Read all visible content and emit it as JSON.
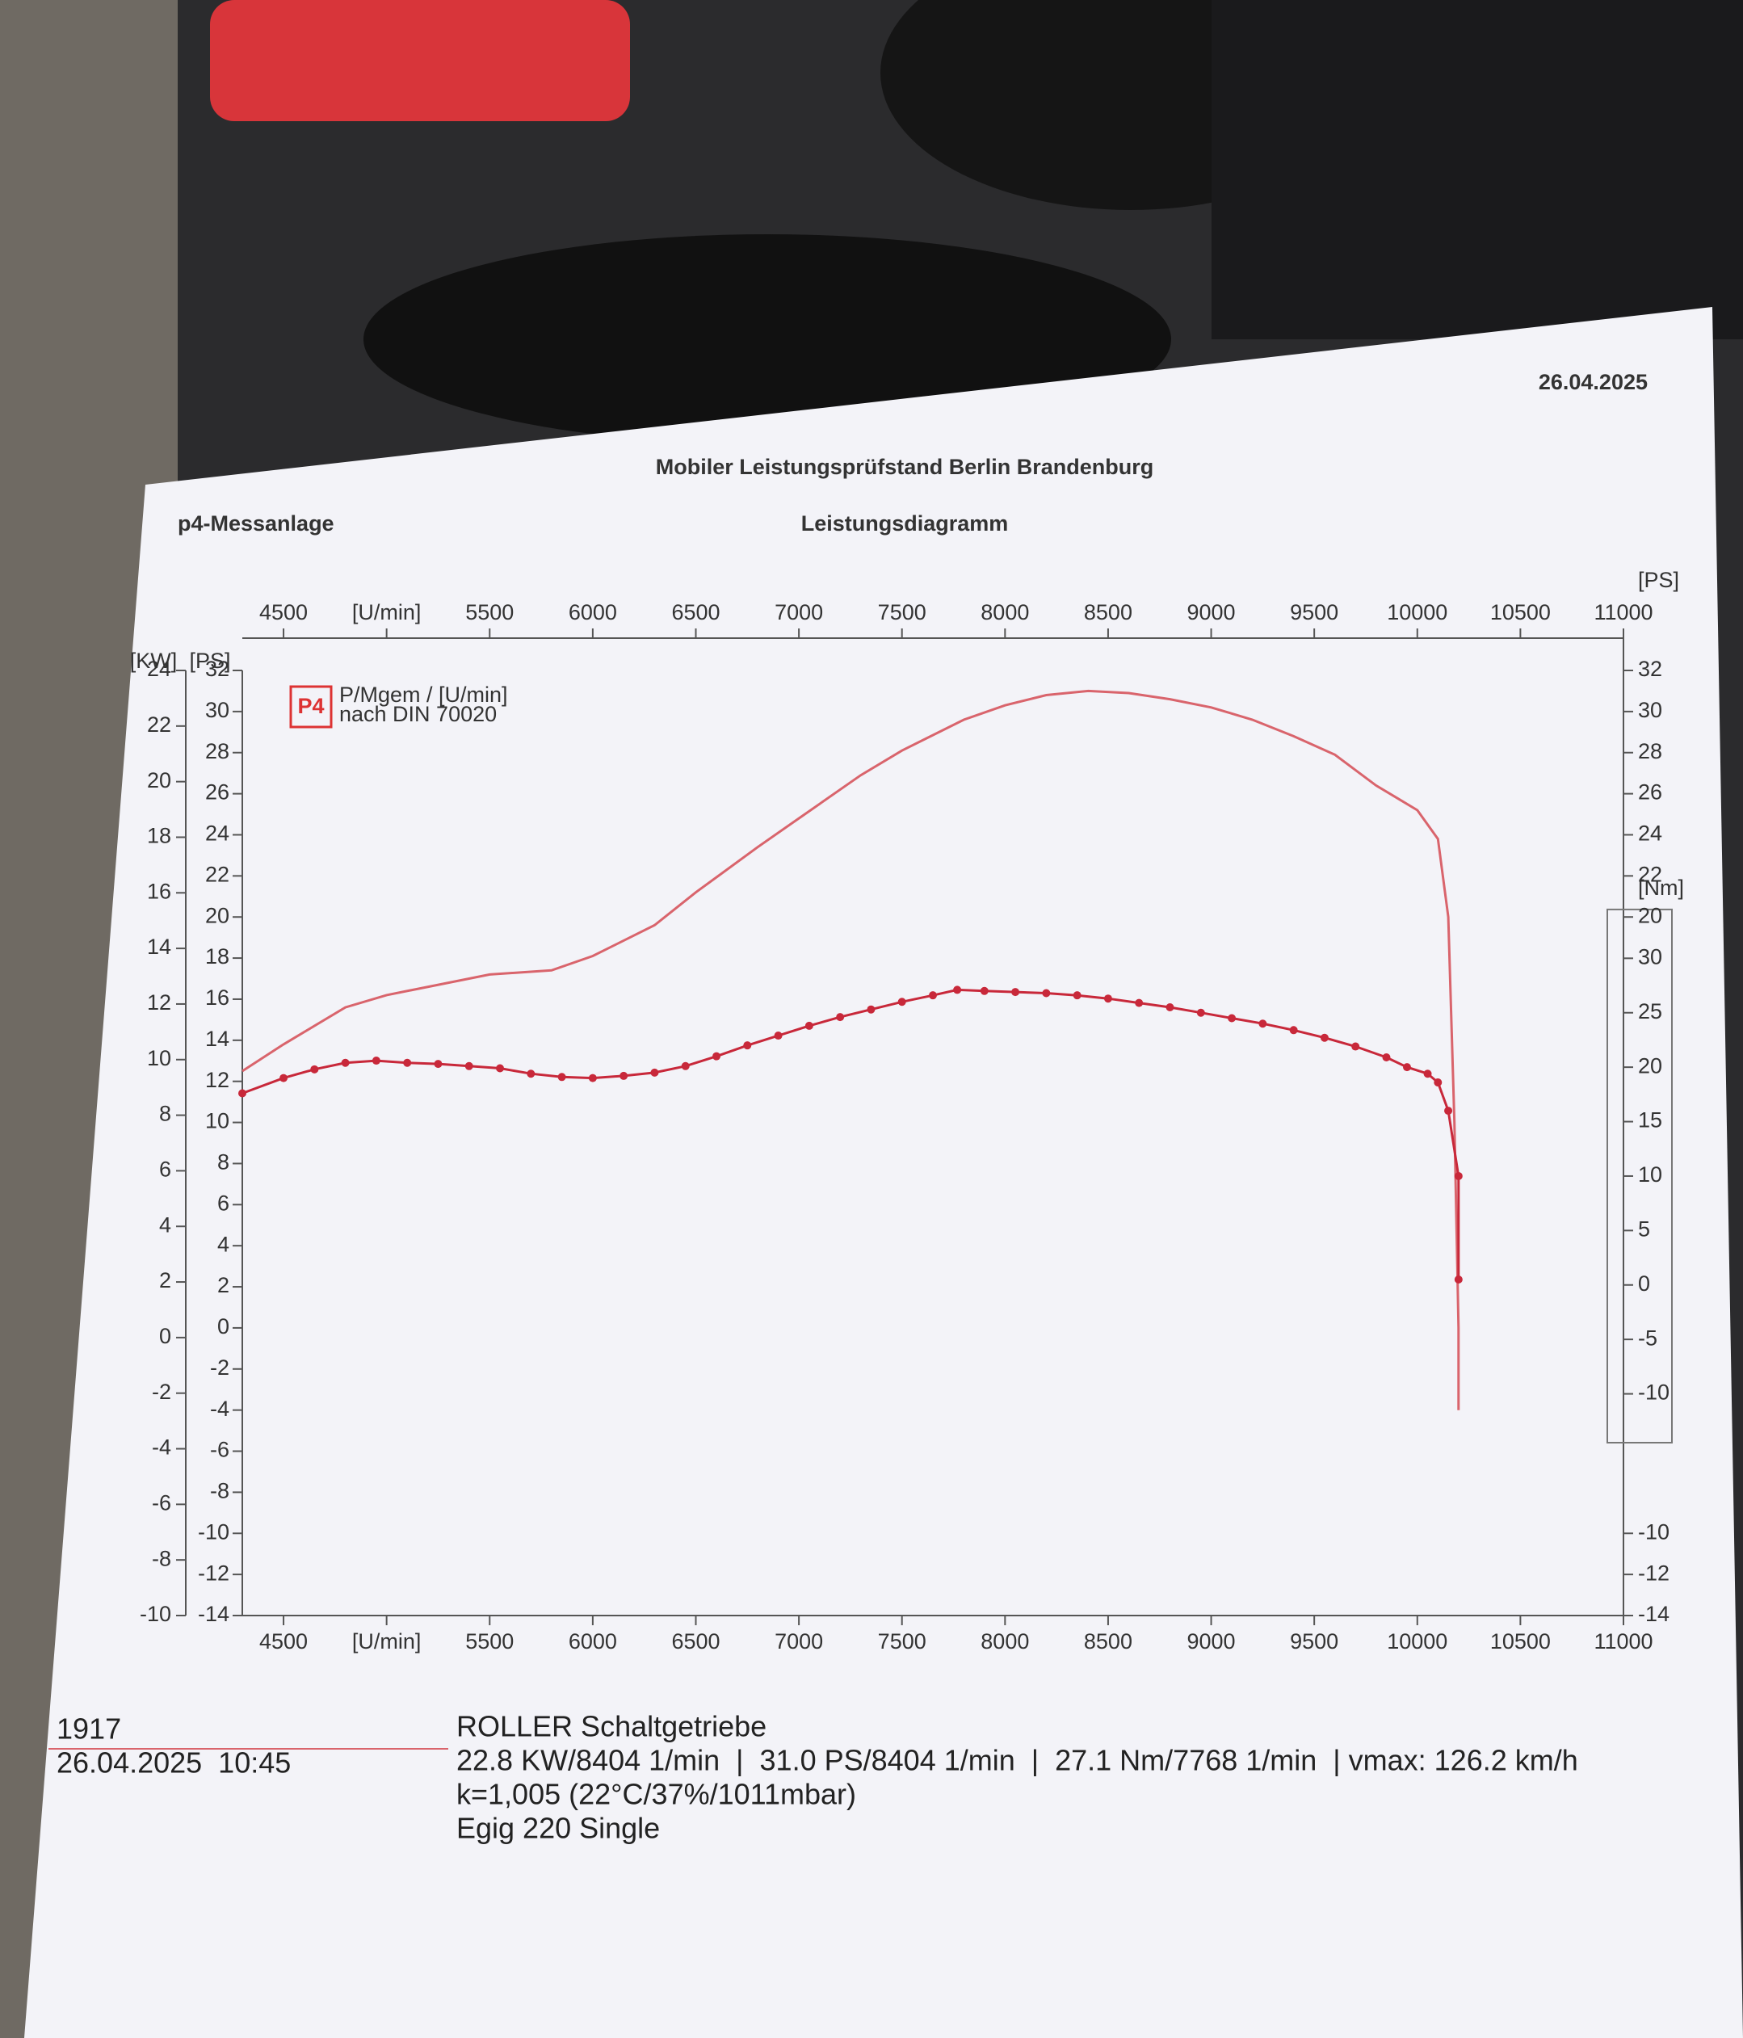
{
  "header": {
    "left": "p4-Messanlage",
    "subtitle": "Mobiler Leistungsprüfstand Berlin Brandenburg",
    "date": "26.04.2025"
  },
  "chart_data": {
    "type": "line",
    "title": "Leistungsdiagramm",
    "logo": "P4",
    "note": [
      "P/Mgem / [U/min]",
      "nach DIN 70020"
    ],
    "xlim": [
      4300,
      11000
    ],
    "xticks": [
      4500,
      {
        "value": 5000,
        "label": "[U/min]"
      },
      5500,
      6000,
      6500,
      7000,
      7500,
      8000,
      8500,
      9000,
      9500,
      10000,
      10500,
      11000
    ],
    "ylabel": "[PS]",
    "ylim": [
      -14,
      32
    ],
    "yticks": [
      -14,
      -12,
      -10,
      -8,
      -6,
      -4,
      -2,
      0,
      2,
      4,
      6,
      8,
      10,
      12,
      14,
      16,
      18,
      20,
      22,
      24,
      26,
      28,
      30,
      32
    ],
    "kw_label": "[KW]",
    "kwlim": [
      -10,
      24
    ],
    "kwticks": [
      -10,
      -8,
      -6,
      -4,
      -2,
      0,
      2,
      4,
      6,
      8,
      10,
      12,
      14,
      16,
      18,
      20,
      22,
      24
    ],
    "y2label": "[Nm]",
    "y2lim": [
      -13,
      33
    ],
    "y2ticks": [
      -10,
      -5,
      0,
      5,
      10,
      15,
      20,
      25,
      30
    ],
    "right_ps_label": "[PS]",
    "right_ps_ticks": [
      -14,
      -12,
      -10,
      20,
      22,
      24,
      26,
      28,
      30,
      32
    ],
    "series": [
      {
        "color": "#d9646c",
        "x": [
          4300,
          4500,
          4800,
          5000,
          5300,
          5500,
          5800,
          6000,
          6300,
          6500,
          6800,
          7000,
          7300,
          7500,
          7800,
          8000,
          8200,
          8404,
          8600,
          8800,
          9000,
          9200,
          9400,
          9600,
          9800,
          9900,
          10000,
          10100,
          10150,
          10180,
          10200,
          10200
        ],
        "values": [
          12.5,
          13.8,
          15.6,
          16.2,
          16.8,
          17.2,
          17.4,
          18.1,
          19.6,
          21.2,
          23.4,
          24.8,
          26.9,
          28.1,
          29.6,
          30.3,
          30.8,
          31.0,
          30.9,
          30.6,
          30.2,
          29.6,
          28.8,
          27.9,
          26.4,
          25.8,
          25.2,
          23.8,
          20.0,
          10.0,
          0.0,
          -4.0
        ]
      },
      {
        "color": "#c8283a",
        "axis": "y2",
        "markers": true,
        "x": [
          4300,
          4500,
          4650,
          4800,
          4950,
          5100,
          5250,
          5400,
          5550,
          5700,
          5850,
          6000,
          6150,
          6300,
          6450,
          6600,
          6750,
          6900,
          7050,
          7200,
          7350,
          7500,
          7650,
          7768,
          7900,
          8050,
          8200,
          8350,
          8500,
          8650,
          8800,
          8950,
          9100,
          9250,
          9400,
          9550,
          9700,
          9850,
          9950,
          10050,
          10100,
          10150,
          10200,
          10200
        ],
        "values": [
          17.6,
          19.0,
          19.8,
          20.4,
          20.6,
          20.4,
          20.3,
          20.1,
          19.9,
          19.4,
          19.1,
          19.0,
          19.2,
          19.5,
          20.1,
          21.0,
          22.0,
          22.9,
          23.8,
          24.6,
          25.3,
          26.0,
          26.6,
          27.1,
          27.0,
          26.9,
          26.8,
          26.6,
          26.3,
          25.9,
          25.5,
          25.0,
          24.5,
          24.0,
          23.4,
          22.7,
          21.9,
          20.9,
          20.0,
          19.4,
          18.6,
          16.0,
          10.0,
          0.5
        ]
      }
    ]
  },
  "footer": {
    "id": "1917",
    "datetime": "26.04.2025  10:45",
    "lines": [
      "ROLLER Schaltgetriebe",
      "22.8 KW/8404 1/min  |  31.0 PS/8404 1/min  |  27.1 Nm/7768 1/min  | vmax: 126.2 km/h",
      "k=1,005 (22°C/37%/1011mbar)",
      "Egig 220 Single"
    ]
  }
}
